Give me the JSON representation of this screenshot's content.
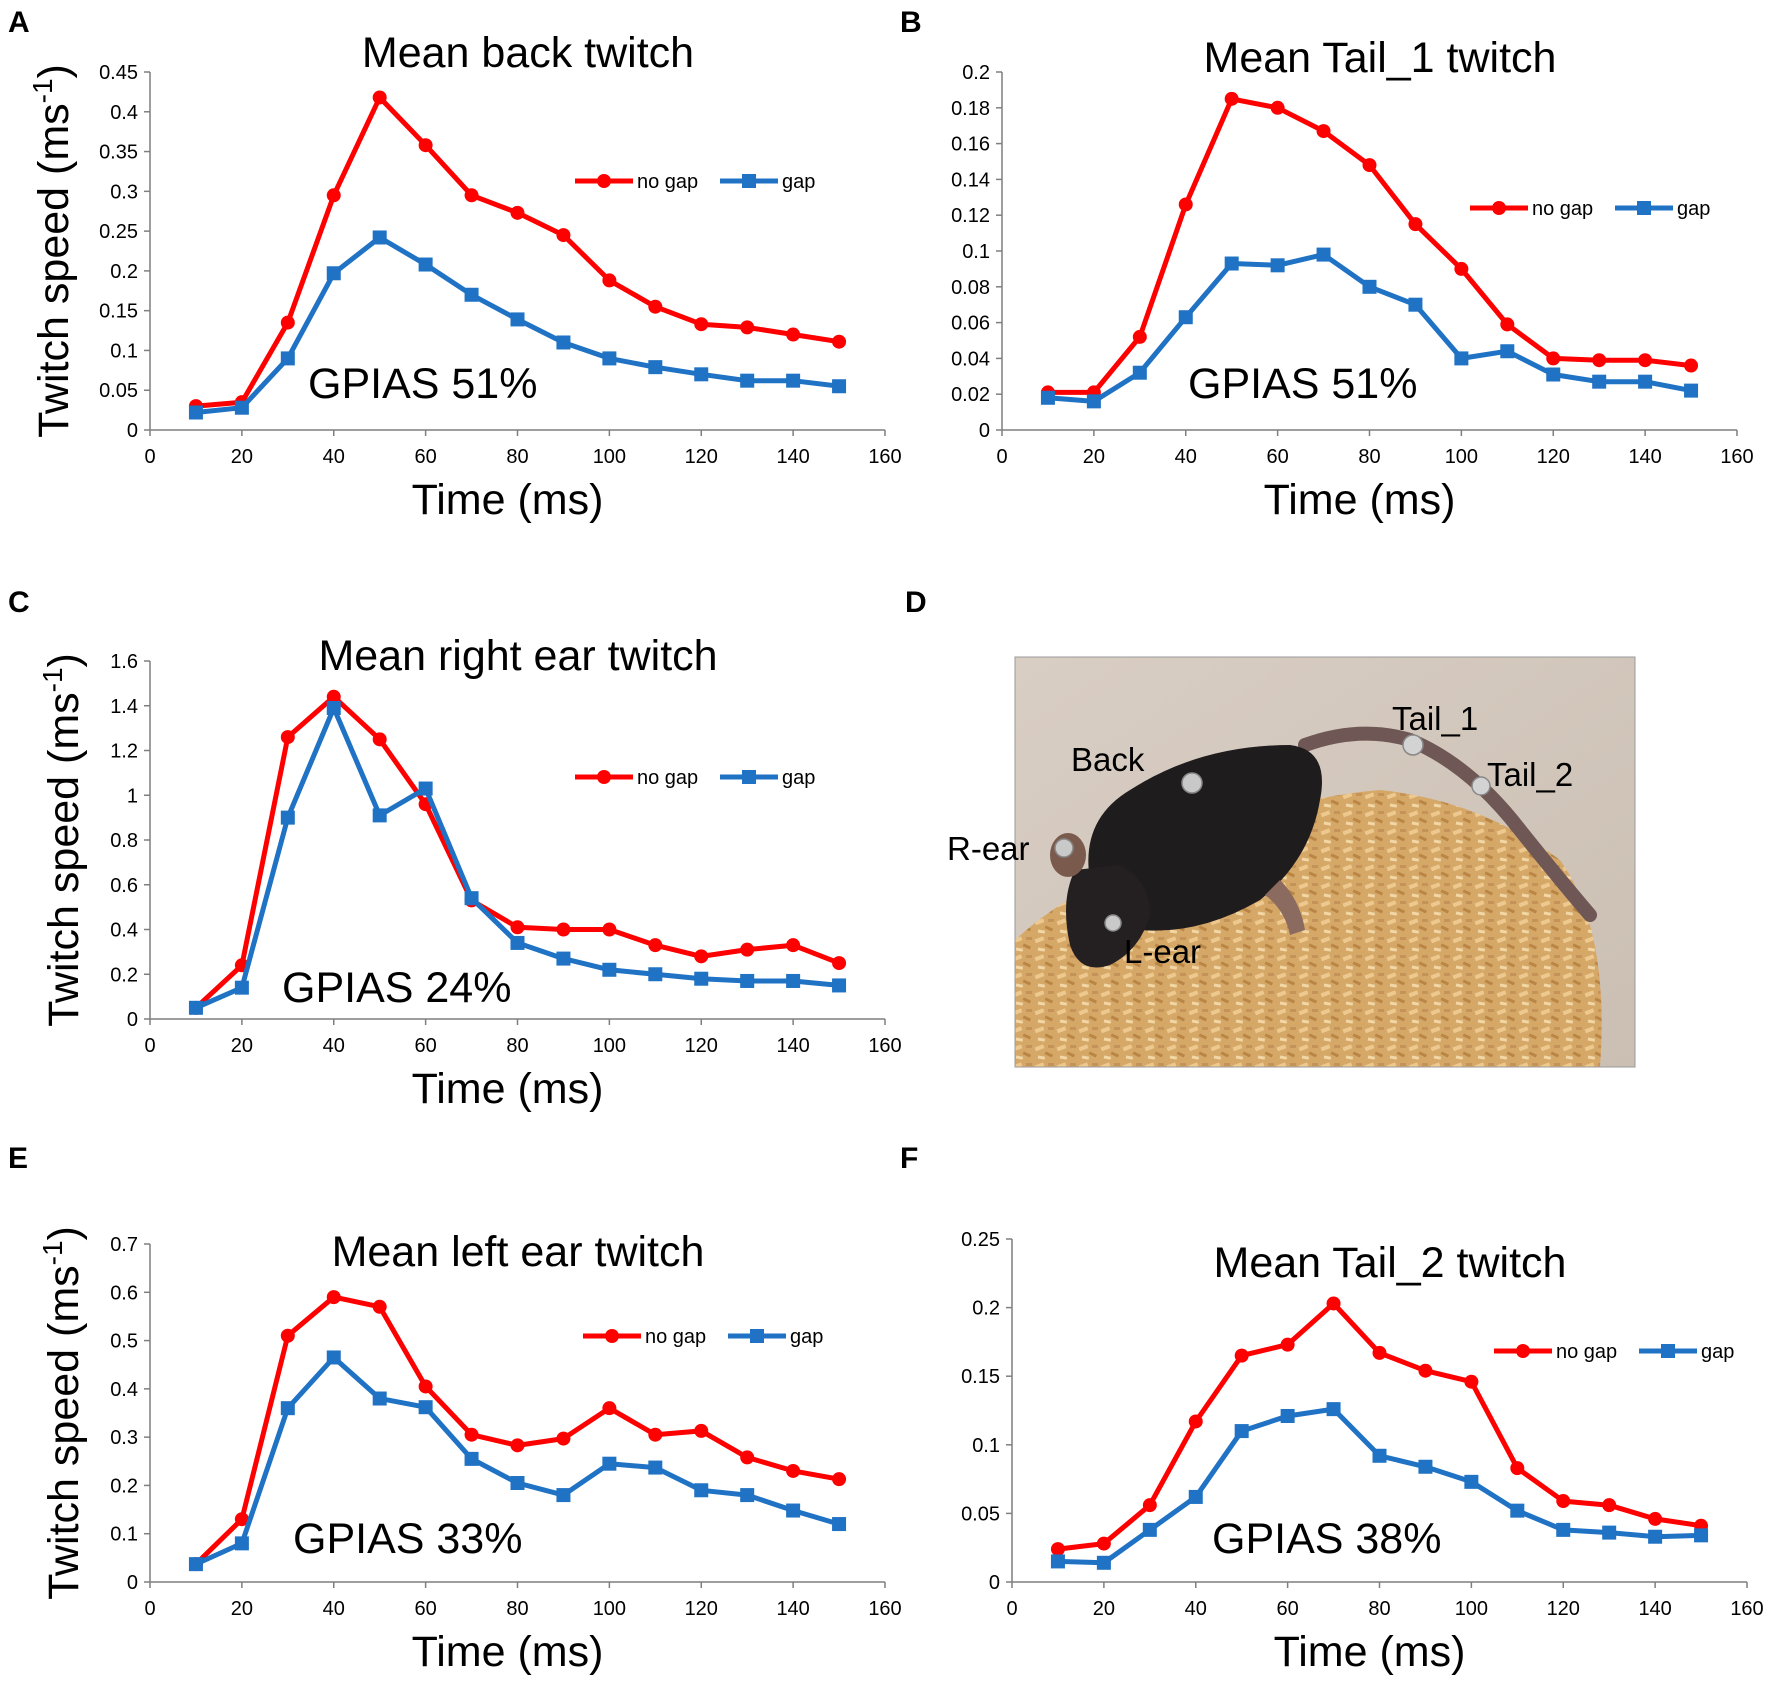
{
  "colors": {
    "no_gap": "#ff0000",
    "gap": "#1f72c4"
  },
  "legend": {
    "no_gap": "no gap",
    "gap": "gap"
  },
  "axis_labels": {
    "x": "Time (ms)",
    "y_main": "Twitch speed (ms",
    "y_sup": "-1",
    "y_close": ")"
  },
  "chart_data": [
    {
      "panel": "A",
      "type": "line",
      "title": "Mean back twitch",
      "xlabel": "Time (ms)",
      "ylabel": "Twitch speed (ms-1)",
      "annotation": "GPIAS  51%",
      "x": [
        10,
        20,
        30,
        40,
        50,
        60,
        70,
        80,
        90,
        100,
        110,
        120,
        130,
        140,
        150
      ],
      "xlim": [
        0,
        160
      ],
      "xticks": [
        0,
        20,
        40,
        60,
        80,
        100,
        120,
        140,
        160
      ],
      "ylim": [
        0,
        0.45
      ],
      "yticks": [
        "0",
        "0.05",
        "0.1",
        "0.15",
        "0.2",
        "0.25",
        "0.3",
        "0.35",
        "0.4",
        "0.45"
      ],
      "series": [
        {
          "name": "no gap",
          "marker": "circle",
          "values": [
            0.03,
            0.035,
            0.135,
            0.295,
            0.418,
            0.358,
            0.295,
            0.273,
            0.245,
            0.188,
            0.155,
            0.133,
            0.129,
            0.12,
            0.111
          ]
        },
        {
          "name": "gap",
          "marker": "square",
          "values": [
            0.022,
            0.028,
            0.09,
            0.197,
            0.242,
            0.208,
            0.17,
            0.139,
            0.11,
            0.09,
            0.079,
            0.07,
            0.062,
            0.062,
            0.055
          ]
        }
      ]
    },
    {
      "panel": "B",
      "type": "line",
      "title": "Mean Tail_1 twitch",
      "xlabel": "Time (ms)",
      "ylabel": "",
      "annotation": "GPIAS  51%",
      "x": [
        10,
        20,
        30,
        40,
        50,
        60,
        70,
        80,
        90,
        100,
        110,
        120,
        130,
        140,
        150
      ],
      "xlim": [
        0,
        160
      ],
      "xticks": [
        0,
        20,
        40,
        60,
        80,
        100,
        120,
        140,
        160
      ],
      "ylim": [
        0,
        0.2
      ],
      "yticks": [
        "0",
        "0.02",
        "0.04",
        "0.06",
        "0.08",
        "0.1",
        "0.12",
        "0.14",
        "0.16",
        "0.18",
        "0.2"
      ],
      "series": [
        {
          "name": "no gap",
          "marker": "circle",
          "values": [
            0.021,
            0.021,
            0.052,
            0.126,
            0.185,
            0.18,
            0.167,
            0.148,
            0.115,
            0.09,
            0.059,
            0.04,
            0.039,
            0.039,
            0.036
          ]
        },
        {
          "name": "gap",
          "marker": "square",
          "values": [
            0.018,
            0.016,
            0.032,
            0.063,
            0.093,
            0.092,
            0.098,
            0.08,
            0.07,
            0.04,
            0.044,
            0.031,
            0.027,
            0.027,
            0.022
          ]
        }
      ]
    },
    {
      "panel": "C",
      "type": "line",
      "title": "Mean right ear twitch",
      "xlabel": "Time (ms)",
      "ylabel": "Twitch speed (ms-1)",
      "annotation": "GPIAS  24%",
      "x": [
        10,
        20,
        30,
        40,
        50,
        60,
        70,
        80,
        90,
        100,
        110,
        120,
        130,
        140,
        150
      ],
      "xlim": [
        0,
        160
      ],
      "xticks": [
        0,
        20,
        40,
        60,
        80,
        100,
        120,
        140,
        160
      ],
      "ylim": [
        0,
        1.6
      ],
      "yticks": [
        "0",
        "0.2",
        "0.4",
        "0.6",
        "0.8",
        "1",
        "1.2",
        "1.4",
        "1.6"
      ],
      "series": [
        {
          "name": "no gap",
          "marker": "circle",
          "values": [
            0.05,
            0.24,
            1.26,
            1.44,
            1.25,
            0.96,
            0.53,
            0.41,
            0.4,
            0.4,
            0.33,
            0.28,
            0.31,
            0.33,
            0.25
          ]
        },
        {
          "name": "gap",
          "marker": "square",
          "values": [
            0.05,
            0.14,
            0.9,
            1.39,
            0.91,
            1.03,
            0.54,
            0.34,
            0.27,
            0.22,
            0.2,
            0.18,
            0.17,
            0.17,
            0.15
          ]
        }
      ]
    },
    {
      "panel": "E",
      "type": "line",
      "title": "Mean left ear twitch",
      "xlabel": "Time (ms)",
      "ylabel": "Twitch speed (ms-1)",
      "annotation": "GPIAS  33%",
      "x": [
        10,
        20,
        30,
        40,
        50,
        60,
        70,
        80,
        90,
        100,
        110,
        120,
        130,
        140,
        150
      ],
      "xlim": [
        0,
        160
      ],
      "xticks": [
        0,
        20,
        40,
        60,
        80,
        100,
        120,
        140,
        160
      ],
      "ylim": [
        0,
        0.7
      ],
      "yticks": [
        "0",
        "0.1",
        "0.2",
        "0.3",
        "0.4",
        "0.5",
        "0.6",
        "0.7"
      ],
      "series": [
        {
          "name": "no gap",
          "marker": "circle",
          "values": [
            0.037,
            0.13,
            0.51,
            0.59,
            0.57,
            0.405,
            0.305,
            0.283,
            0.297,
            0.36,
            0.305,
            0.313,
            0.258,
            0.23,
            0.213
          ]
        },
        {
          "name": "gap",
          "marker": "square",
          "values": [
            0.037,
            0.08,
            0.36,
            0.465,
            0.38,
            0.362,
            0.255,
            0.205,
            0.18,
            0.245,
            0.237,
            0.19,
            0.18,
            0.148,
            0.12
          ]
        }
      ]
    },
    {
      "panel": "F",
      "type": "line",
      "title": "Mean Tail_2 twitch",
      "xlabel": "Time (ms)",
      "ylabel": "",
      "annotation": "GPIAS  38%",
      "x": [
        10,
        20,
        30,
        40,
        50,
        60,
        70,
        80,
        90,
        100,
        110,
        120,
        130,
        140,
        150
      ],
      "xlim": [
        0,
        160
      ],
      "xticks": [
        0,
        20,
        40,
        60,
        80,
        100,
        120,
        140,
        160
      ],
      "ylim": [
        0,
        0.25
      ],
      "yticks": [
        "0",
        "0.05",
        "0.1",
        "0.15",
        "0.2",
        "0.25"
      ],
      "series": [
        {
          "name": "no gap",
          "marker": "circle",
          "values": [
            0.024,
            0.028,
            0.056,
            0.117,
            0.165,
            0.173,
            0.203,
            0.167,
            0.154,
            0.146,
            0.083,
            0.059,
            0.056,
            0.046,
            0.041
          ]
        },
        {
          "name": "gap",
          "marker": "square",
          "values": [
            0.015,
            0.014,
            0.038,
            0.062,
            0.11,
            0.121,
            0.126,
            0.092,
            0.084,
            0.073,
            0.052,
            0.038,
            0.036,
            0.033,
            0.034
          ]
        }
      ]
    }
  ],
  "photo": {
    "panel": "D",
    "labels": {
      "back": "Back",
      "tail1": "Tail_1",
      "tail2": "Tail_2",
      "r_ear": "R-ear",
      "l_ear": "L-ear"
    }
  }
}
